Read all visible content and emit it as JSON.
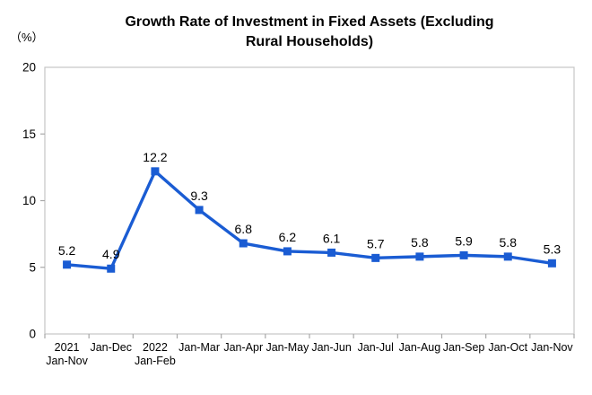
{
  "chart_data": {
    "type": "line",
    "title": "Growth Rate of Investment in Fixed Assets (Excluding\nRural Households)",
    "unit_label": "（%）",
    "categories": [
      "2021\nJan-Nov",
      "Jan-Dec",
      "2022\nJan-Feb",
      "Jan-Mar",
      "Jan-Apr",
      "Jan-May",
      "Jan-Jun",
      "Jan-Jul",
      "Jan-Aug",
      "Jan-Sep",
      "Jan-Oct",
      "Jan-Nov"
    ],
    "values": [
      5.2,
      4.9,
      12.2,
      9.3,
      6.8,
      6.2,
      6.1,
      5.7,
      5.8,
      5.9,
      5.8,
      5.3
    ],
    "point_labels": [
      "5.2",
      "4.9",
      "12.2",
      "9.3",
      "6.8",
      "6.2",
      "6.1",
      "5.7",
      "5.8",
      "5.9",
      "5.8",
      "5.3"
    ],
    "ylim": [
      0,
      20
    ],
    "yticks": [
      0,
      5,
      10,
      15,
      20
    ],
    "ytick_labels": [
      "0",
      "5",
      "10",
      "15",
      "20"
    ],
    "grid": false,
    "legend": false,
    "colors": {
      "line": "#1A5CD3",
      "marker": "#1A5CD3",
      "text": "#000000",
      "border": "#C6C6C6",
      "tick": "#A8A8A8",
      "background": "#FFFFFF"
    }
  }
}
